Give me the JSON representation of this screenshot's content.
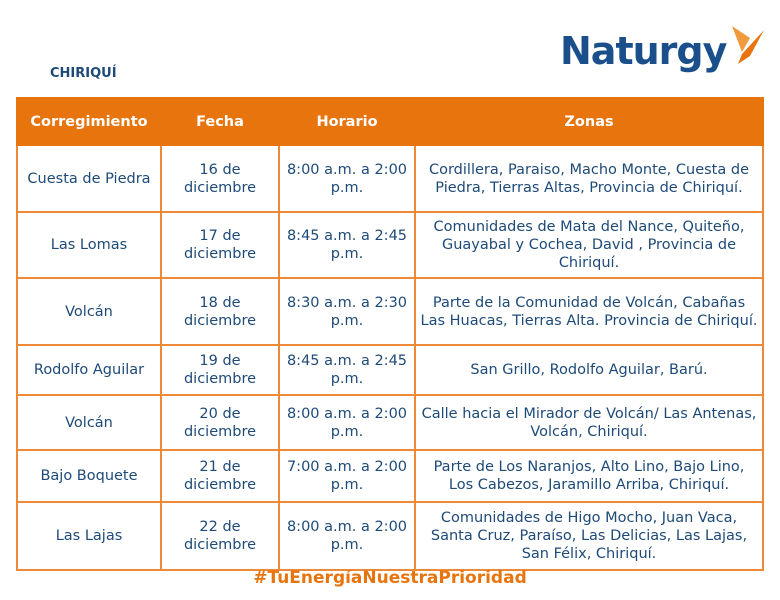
{
  "region": "CHIRIQUÍ",
  "logo": {
    "text": "Naturgy",
    "brand_color": "#1a4f8b",
    "accent_color": "#e8740e"
  },
  "table": {
    "headers": [
      "Corregimiento",
      "Fecha",
      "Horario",
      "Zonas"
    ],
    "rows": [
      {
        "corregimiento": "Cuesta de Piedra",
        "fecha": "16 de diciembre",
        "horario": "8:00 a.m. a 2:00 p.m.",
        "zonas": "Cordillera, Paraiso, Macho Monte, Cuesta de Piedra, Tierras Altas, Provincia de Chiriquí."
      },
      {
        "corregimiento": "Las Lomas",
        "fecha": "17 de diciembre",
        "horario": "8:45 a.m. a 2:45 p.m.",
        "zonas": "Comunidades de Mata del Nance, Quiteño, Guayabal y Cochea, David , Provincia de Chiriquí."
      },
      {
        "corregimiento": "Volcán",
        "fecha": "18 de diciembre",
        "horario": "8:30 a.m. a 2:30 p.m.",
        "zonas": "Parte de la Comunidad de Volcán, Cabañas Las Huacas, Tierras Alta. Provincia de Chiriquí."
      },
      {
        "corregimiento": "Rodolfo Aguilar",
        "fecha": "19 de diciembre",
        "horario": "8:45 a.m. a 2:45 p.m.",
        "zonas": "San Grillo, Rodolfo Aguilar, Barú."
      },
      {
        "corregimiento": "Volcán",
        "fecha": "20 de diciembre",
        "horario": "8:00 a.m. a 2:00 p.m.",
        "zonas": "Calle hacia el Mirador de Volcán/ Las Antenas, Volcán, Chiriquí."
      },
      {
        "corregimiento": "Bajo Boquete",
        "fecha": "21 de diciembre",
        "horario": "7:00 a.m. a 2:00 p.m.",
        "zonas": "Parte de Los Naranjos, Alto Lino, Bajo Lino, Los Cabezos, Jaramillo Arriba, Chiriquí."
      },
      {
        "corregimiento": "Las Lajas",
        "fecha": "22 de diciembre",
        "horario": "8:00 a.m. a 2:00 p.m.",
        "zonas": "Comunidades de Higo Mocho, Juan Vaca, Santa Cruz, Paraíso, Las Delicias, Las Lajas, San Félix, Chiriquí."
      }
    ]
  },
  "hashtag": "#TuEnergíaNuestraPrioridad"
}
